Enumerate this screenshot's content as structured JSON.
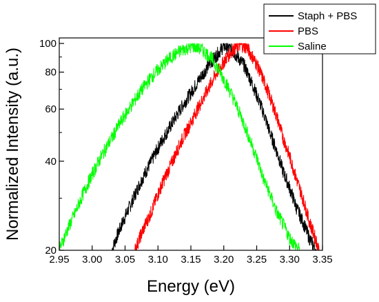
{
  "chart_data": {
    "type": "line",
    "title": "",
    "xlabel": "Energy (eV)",
    "ylabel": "Normalized Intensity (a.u.)",
    "xlim": [
      2.95,
      3.35
    ],
    "ylim": [
      20,
      100
    ],
    "yscale": "log",
    "x_ticks": [
      "2.95",
      "3.00",
      "3.05",
      "3.10",
      "3.15",
      "3.20",
      "3.25",
      "3.30",
      "3.35"
    ],
    "y_ticks": [
      "20",
      "40",
      "60",
      "80",
      "100"
    ],
    "grid": false,
    "legend_position": "top-right",
    "series": [
      {
        "name": "Staph + PBS",
        "color": "#000000",
        "x": [
          3.03,
          3.06,
          3.09,
          3.12,
          3.15,
          3.17,
          3.185,
          3.195,
          3.2,
          3.21,
          3.23,
          3.25,
          3.27,
          3.29,
          3.31,
          3.33,
          3.34
        ],
        "y": [
          20,
          29,
          40,
          53,
          68,
          80,
          89,
          95,
          98,
          96,
          85,
          67,
          50,
          37,
          28,
          22,
          20
        ]
      },
      {
        "name": "PBS",
        "color": "#ff0000",
        "x": [
          3.065,
          3.09,
          3.12,
          3.15,
          3.17,
          3.19,
          3.205,
          3.215,
          3.225,
          3.235,
          3.25,
          3.27,
          3.29,
          3.31,
          3.33,
          3.345
        ],
        "y": [
          20,
          27,
          39,
          54,
          66,
          80,
          90,
          96,
          99,
          97,
          85,
          66,
          48,
          35,
          25,
          20
        ]
      },
      {
        "name": "Saline",
        "color": "#00ff00",
        "x": [
          2.95,
          2.975,
          3.0,
          3.03,
          3.06,
          3.09,
          3.12,
          3.14,
          3.155,
          3.165,
          3.18,
          3.2,
          3.22,
          3.24,
          3.26,
          3.28,
          3.3,
          3.315
        ],
        "y": [
          20,
          27,
          36,
          48,
          62,
          77,
          90,
          96,
          98,
          96,
          90,
          76,
          61,
          47,
          35,
          27,
          22,
          20
        ]
      }
    ]
  }
}
